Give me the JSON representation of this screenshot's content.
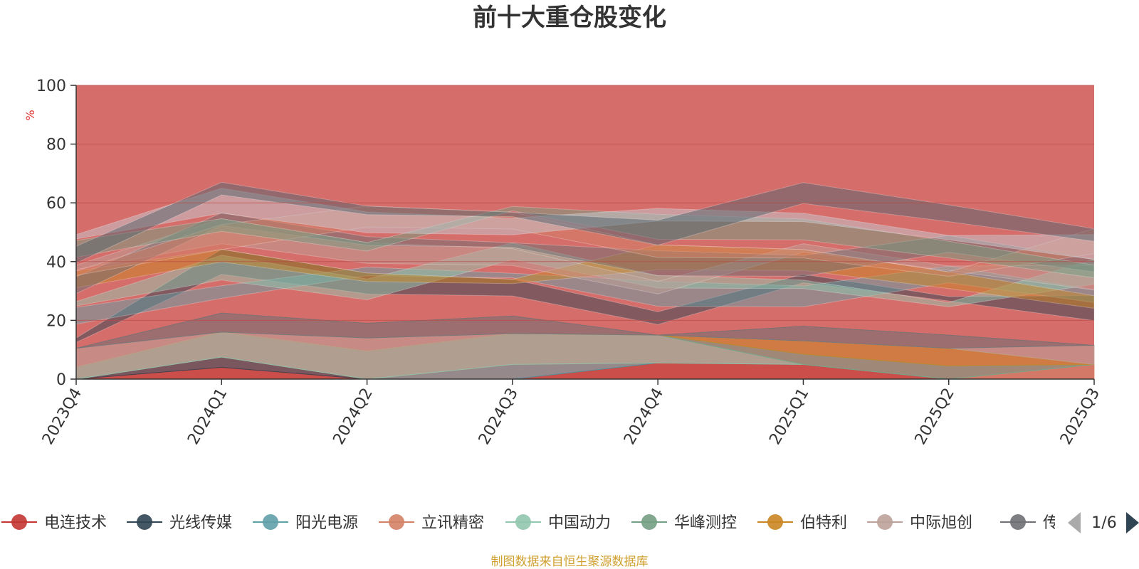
{
  "chart_data": {
    "type": "area",
    "stacked": true,
    "title": "前十大重仓股变化",
    "ylabel": "%",
    "ylim": [
      0,
      100
    ],
    "yticks": [
      0,
      20,
      40,
      60,
      80,
      100
    ],
    "categories": [
      "2023Q4",
      "2024Q1",
      "2024Q2",
      "2024Q3",
      "2024Q4",
      "2025Q1",
      "2025Q2",
      "2025Q3"
    ],
    "series": [
      {
        "name": "电连技术",
        "color": "#c23531",
        "values": [
          0,
          4,
          0,
          0,
          5.5,
          5,
          0,
          0
        ]
      },
      {
        "name": "光线传媒",
        "color": "#2f4554",
        "values": [
          0,
          3.5,
          0,
          0,
          0,
          0,
          0,
          0
        ]
      },
      {
        "name": "阳光电源",
        "color": "#61a0a8",
        "values": [
          0,
          0,
          0,
          5,
          0,
          0,
          0,
          0
        ]
      },
      {
        "name": "立讯精密",
        "color": "#d48265",
        "values": [
          0,
          0,
          0,
          0,
          0,
          0,
          0,
          5
        ]
      },
      {
        "name": "中国动力",
        "color": "#91c7ae",
        "values": [
          4,
          8.5,
          9.5,
          10.5,
          9.5,
          0,
          0,
          0
        ]
      },
      {
        "name": "华峰测控",
        "color": "#749f83",
        "values": [
          0,
          0,
          0,
          0,
          0,
          3.5,
          4.5,
          0
        ]
      },
      {
        "name": "伯特利",
        "color": "#ca8622",
        "values": [
          0,
          0,
          0,
          0,
          0,
          4.5,
          6,
          0
        ]
      },
      {
        "name": "中际旭创",
        "color": "#bda29a",
        "values": [
          6.5,
          0,
          4.5,
          0,
          0,
          0,
          0,
          6.5
        ]
      },
      {
        "name": "传音控股",
        "color": "#6e7074",
        "values": [
          0,
          6.5,
          5,
          6,
          0,
          5,
          4.5,
          0
        ]
      }
    ],
    "legend_page": "1/6",
    "source_note": "制图数据来自恒生聚源数据库"
  }
}
